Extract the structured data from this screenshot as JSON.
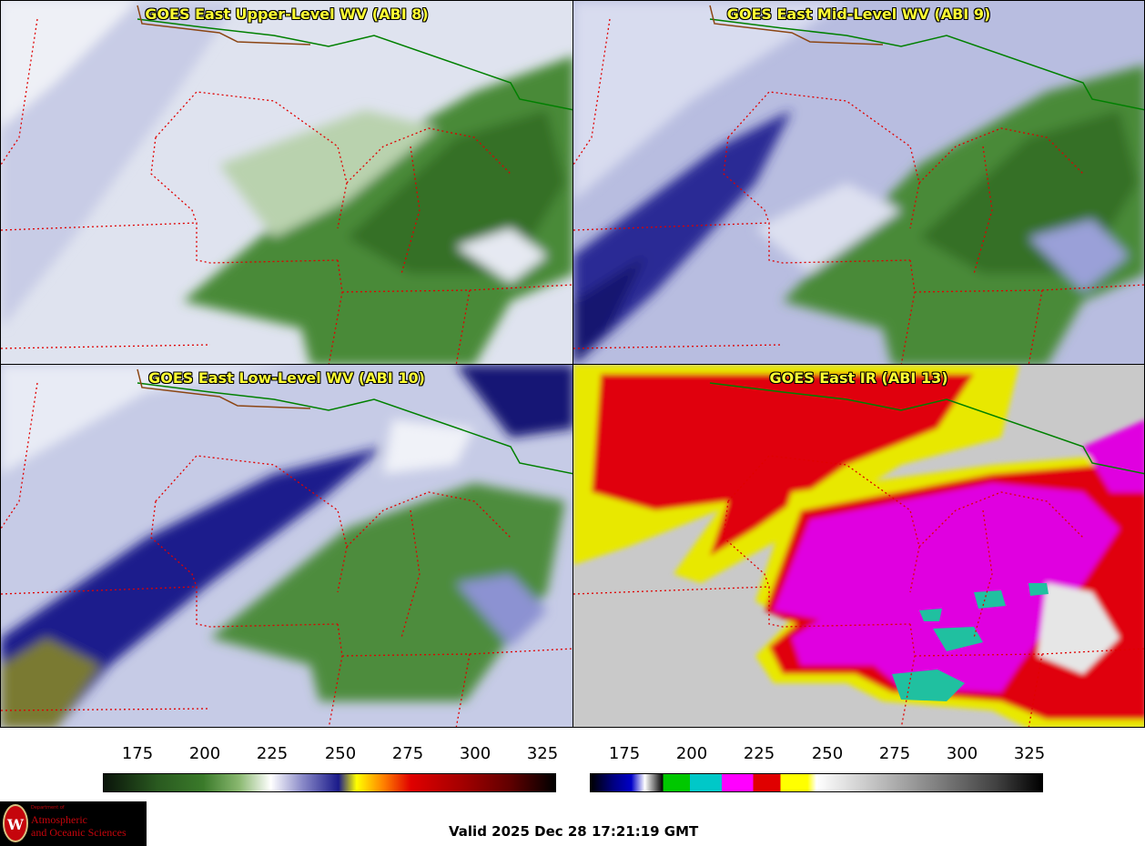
{
  "panels": [
    {
      "id": "upper",
      "title": "GOES East Upper-Level WV (ABI 8)"
    },
    {
      "id": "mid",
      "title": "GOES East Mid-Level WV (ABI 9)"
    },
    {
      "id": "low",
      "title": "GOES East Low-Level WV (ABI 10)"
    },
    {
      "id": "ir",
      "title": "GOES East IR (ABI 13)"
    }
  ],
  "colorbar_wv": {
    "ticks": [
      "175",
      "200",
      "225",
      "250",
      "275",
      "300",
      "325"
    ],
    "colors": {
      "dark": "#0a140a",
      "green": "#3a7a2a",
      "white": "#ffffff",
      "blue": "#1a1a8a",
      "yellow": "#ffff00",
      "orange": "#ff8000",
      "red": "#e00000",
      "darkred": "#600000"
    }
  },
  "colorbar_ir": {
    "ticks": [
      "175",
      "200",
      "225",
      "250",
      "275",
      "300",
      "325"
    ],
    "colors": {
      "black": "#000000",
      "blue": "#0000c8",
      "green": "#00c800",
      "cyan": "#00c8c8",
      "magenta": "#ff00ff",
      "red": "#e00000",
      "yellow": "#ffff00",
      "gray": "#808080"
    }
  },
  "imagery_colors": {
    "moist_green": "#3f7a30",
    "dry_blue": "#1c1c90",
    "pale": "#dde4ee",
    "ir_red": "#e00010",
    "ir_magenta": "#e000e0",
    "ir_yellow": "#e8e800",
    "ir_cyan": "#20c0a0",
    "state_border": "#e00000",
    "intl_border": "#008000",
    "coast": "#8b4513"
  },
  "logo": {
    "dept": "Department of",
    "line1": "Atmospheric",
    "line2": "and Oceanic Sciences",
    "crest_icon": "uw-crest-icon"
  },
  "valid_time": "Valid 2025 Dec 28 17:21:19 GMT"
}
